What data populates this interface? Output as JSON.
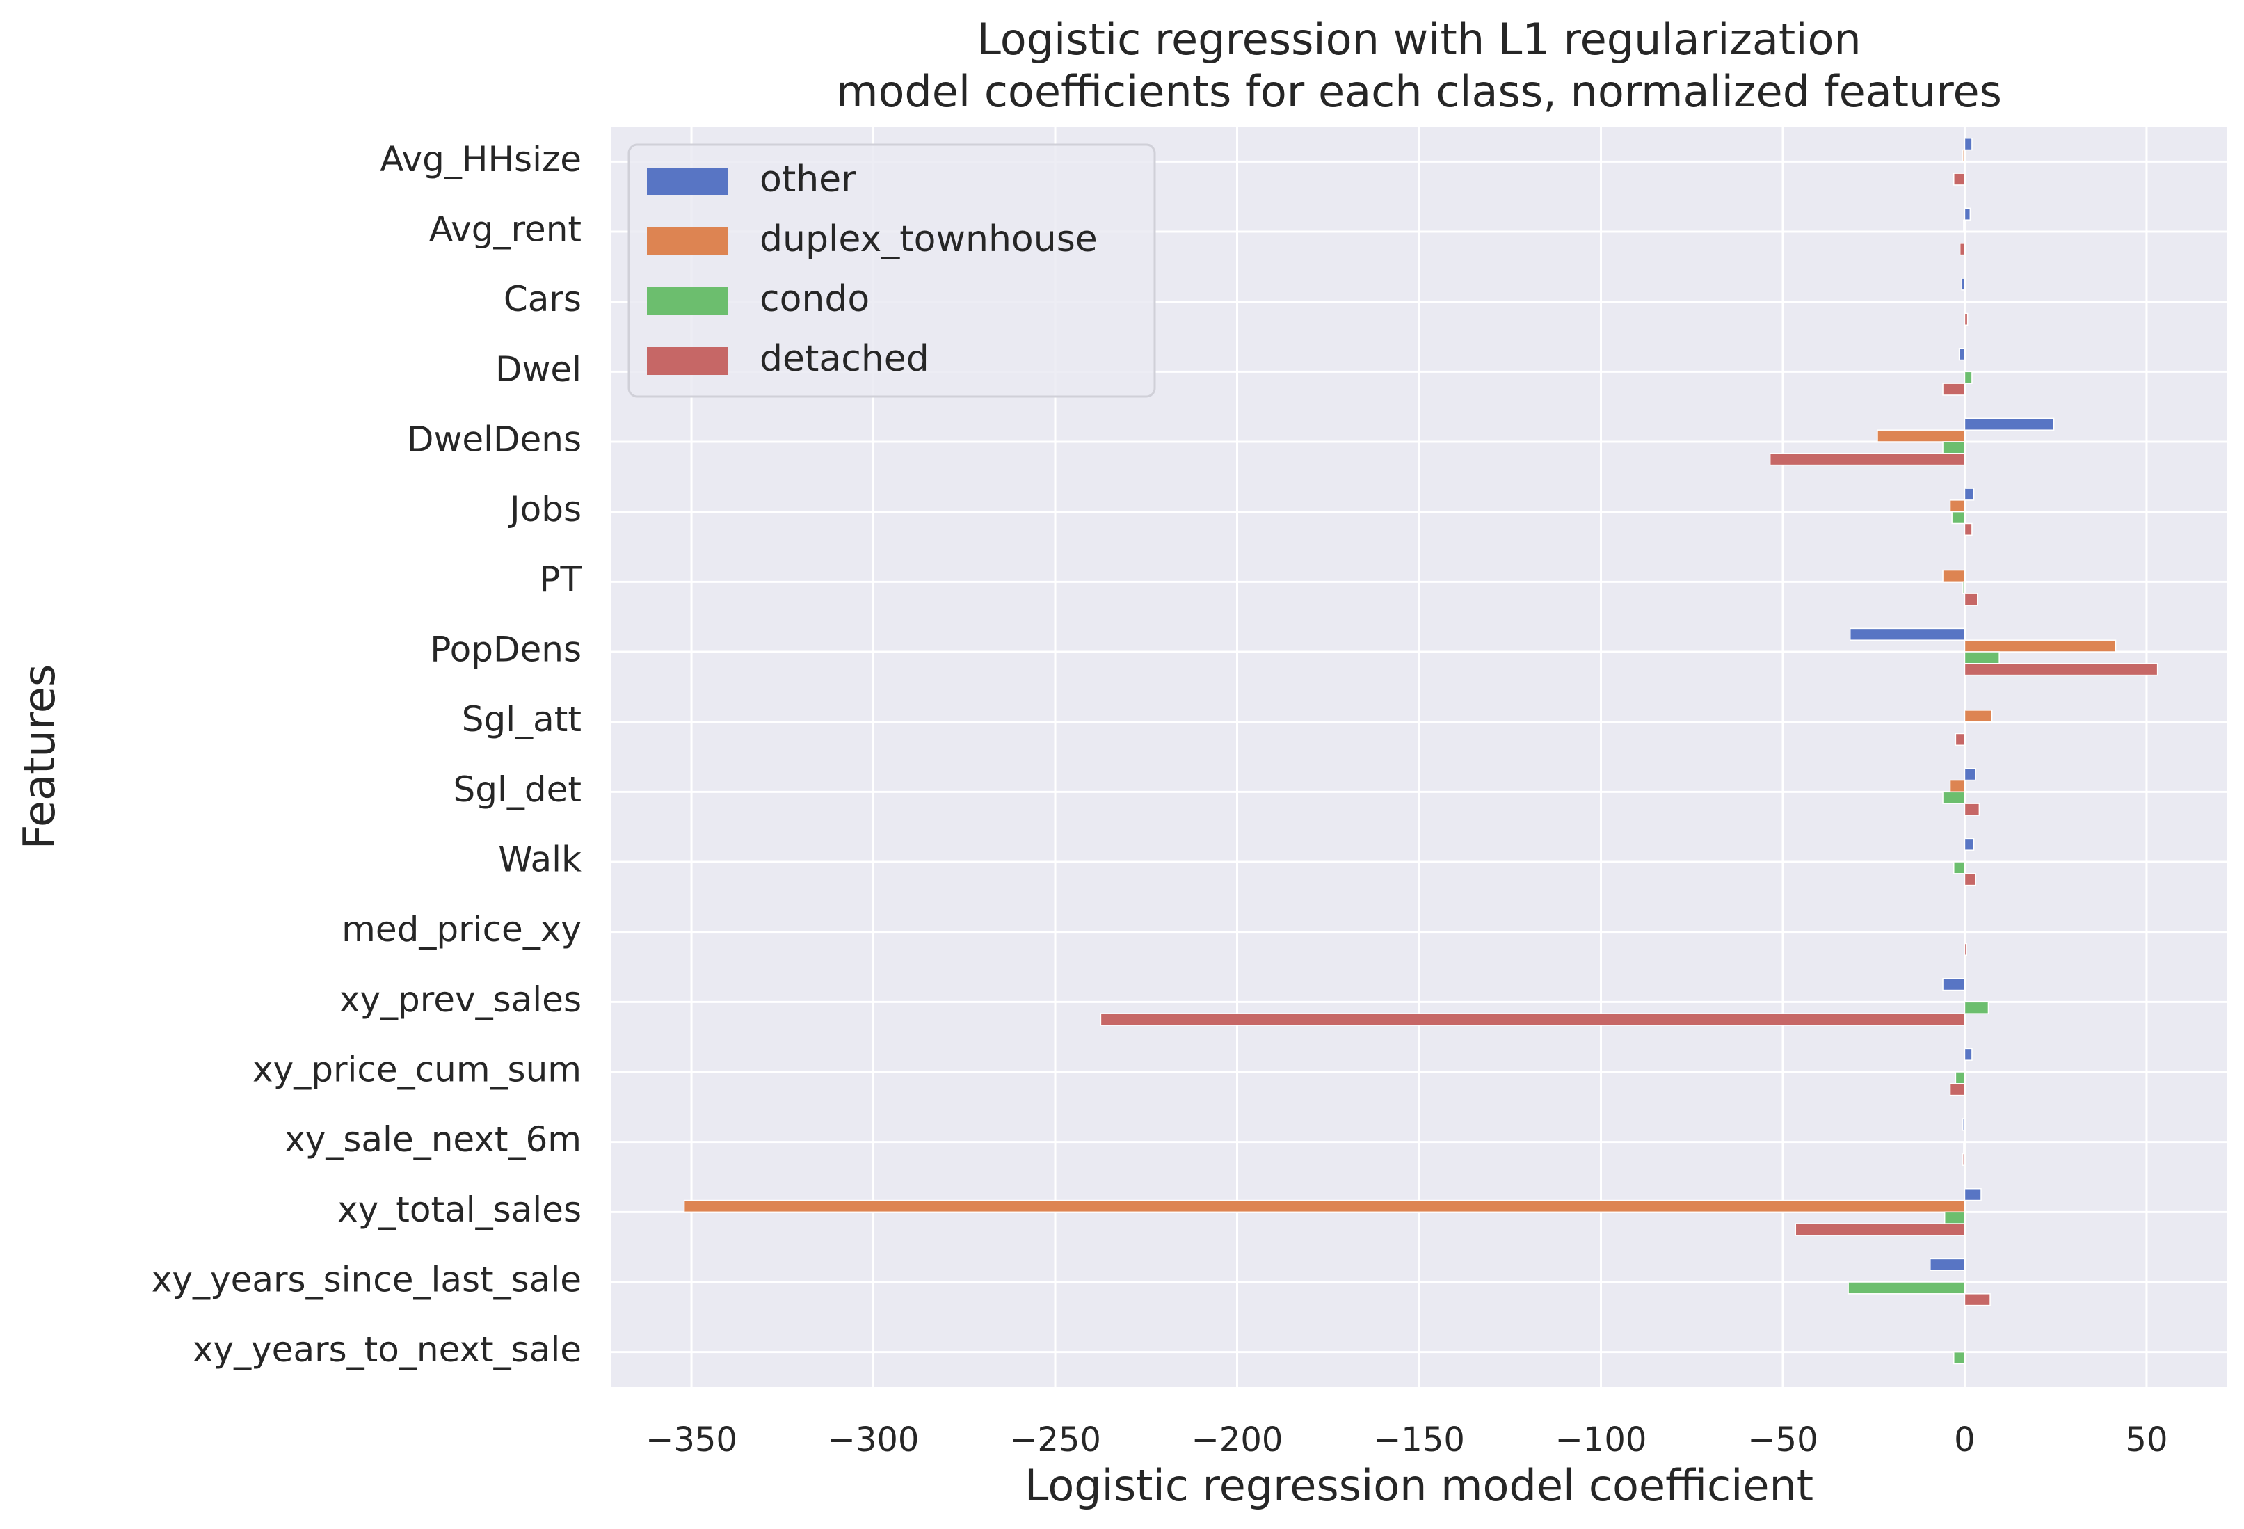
{
  "chart_data": {
    "type": "bar",
    "orientation": "horizontal",
    "title": [
      "Logistic regression with L1 regularization",
      "model coefficients for each class, normalized features"
    ],
    "xlabel": "Logistic regression model coefficient",
    "ylabel": "Features",
    "xlim": [
      -372,
      72
    ],
    "xticks": [
      -350,
      -300,
      -250,
      -200,
      -150,
      -100,
      -50,
      0,
      50
    ],
    "xtick_labels": [
      "−350",
      "−300",
      "−250",
      "−200",
      "−150",
      "−100",
      "−50",
      "0",
      "50"
    ],
    "grid": true,
    "legend_position": "top-left",
    "categories": [
      "Avg_HHsize",
      "Avg_rent",
      "Cars",
      "Dwel",
      "DwelDens",
      "Jobs",
      "PT",
      "PopDens",
      "Sgl_att",
      "Sgl_det",
      "Walk",
      "med_price_xy",
      "xy_prev_sales",
      "xy_price_cum_sum",
      "xy_sale_next_6m",
      "xy_total_sales",
      "xy_years_since_last_sale",
      "xy_years_to_next_sale"
    ],
    "series": [
      {
        "name": "other",
        "color": "#5875c4",
        "values": [
          2,
          1.5,
          -0.8,
          -1.5,
          24.5,
          2.5,
          0,
          -31.5,
          0,
          3,
          2.5,
          0,
          -6,
          2,
          -0.5,
          4.5,
          -9.5,
          0
        ]
      },
      {
        "name": "duplex_townhouse",
        "color": "#dd8452",
        "values": [
          -0.5,
          -0.3,
          0,
          0,
          -24,
          -4,
          -6,
          41.5,
          7.5,
          -4,
          0,
          0,
          0,
          0,
          0,
          -352,
          0,
          0
        ]
      },
      {
        "name": "condo",
        "color": "#6cbe6e",
        "values": [
          0,
          0,
          0,
          2,
          -6,
          -3.5,
          -0.5,
          9.5,
          0,
          -6,
          -3,
          0,
          6.5,
          -2.5,
          -0.3,
          -5.5,
          -32,
          -3
        ]
      },
      {
        "name": "detached",
        "color": "#c66766",
        "values": [
          -3,
          -1.3,
          0.8,
          -6,
          -53.5,
          2,
          3.5,
          53,
          -2.5,
          4,
          3,
          0.5,
          -237.5,
          -4,
          -0.5,
          -46.5,
          7,
          0
        ]
      }
    ]
  }
}
